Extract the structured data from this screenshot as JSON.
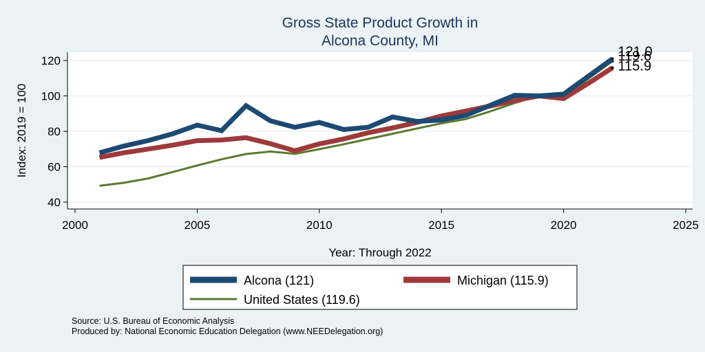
{
  "chart_data": {
    "type": "line",
    "title_lines": [
      "Gross State Product Growth in",
      "Alcona County, MI"
    ],
    "xlabel": "Year: Through 2022",
    "ylabel": "Index: 2019 = 100",
    "xlim": [
      2000,
      2025
    ],
    "ylim": [
      40,
      125
    ],
    "xticks": [
      2000,
      2005,
      2010,
      2015,
      2020,
      2025
    ],
    "yticks": [
      40,
      60,
      80,
      100,
      120
    ],
    "grid": true,
    "legend_position": "bottom",
    "series": [
      {
        "name": "United States (119.6)",
        "color": "#5a7a2e",
        "x": [
          2001,
          2002,
          2003,
          2004,
          2005,
          2006,
          2007,
          2008,
          2009,
          2010,
          2011,
          2012,
          2013,
          2014,
          2015,
          2016,
          2017,
          2018,
          2019,
          2020,
          2021,
          2022
        ],
        "y": [
          49.2,
          50.9,
          53.4,
          57.0,
          60.7,
          64.2,
          67.2,
          68.6,
          67.3,
          69.9,
          72.7,
          75.7,
          78.6,
          81.6,
          84.5,
          86.9,
          91.3,
          96.0,
          100.0,
          99.0,
          109.6,
          119.6
        ],
        "end_label": "119.6"
      },
      {
        "name": "Michigan (115.9)",
        "color": "#9e3a3a",
        "x": [
          2001,
          2002,
          2003,
          2004,
          2005,
          2006,
          2007,
          2008,
          2009,
          2010,
          2011,
          2012,
          2013,
          2014,
          2015,
          2016,
          2017,
          2018,
          2019,
          2020,
          2021,
          2022
        ],
        "y": [
          65.3,
          67.9,
          70.0,
          72.2,
          74.7,
          75.1,
          76.4,
          73.0,
          69.0,
          72.9,
          75.7,
          79.2,
          81.9,
          85.0,
          88.7,
          91.5,
          94.3,
          97.4,
          100.0,
          98.5,
          107.0,
          115.9
        ],
        "end_label": "115.9"
      },
      {
        "name": "Alcona  (121)",
        "color": "#1d4a73",
        "x": [
          2001,
          2002,
          2003,
          2004,
          2005,
          2006,
          2007,
          2008,
          2009,
          2010,
          2011,
          2012,
          2013,
          2014,
          2015,
          2016,
          2017,
          2018,
          2019,
          2020,
          2021,
          2022
        ],
        "y": [
          67.9,
          71.7,
          74.8,
          78.6,
          83.5,
          80.4,
          94.5,
          85.9,
          82.3,
          85.0,
          81.0,
          82.3,
          88.1,
          85.6,
          86.4,
          89.0,
          94.7,
          100.3,
          100.0,
          101.0,
          111.0,
          121.0
        ],
        "end_label": "121.0"
      }
    ],
    "legend": [
      {
        "label": "Alcona  (121)",
        "color": "#1d4a73"
      },
      {
        "label": "Michigan (115.9)",
        "color": "#9e3a3a"
      },
      {
        "label": "United States (119.6)",
        "color": "#5a7a2e"
      }
    ]
  },
  "notes": {
    "source": "Source: U.S. Bureau of Economic Analysis",
    "produced": "Produced by: National Economic Education Delegation (www.NEEDelegation.org)"
  }
}
